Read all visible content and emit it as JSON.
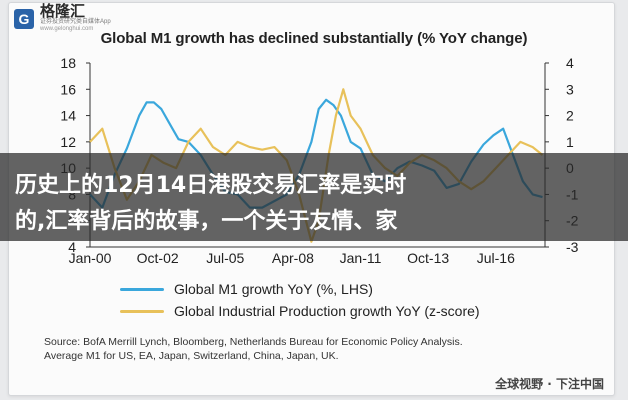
{
  "brand": {
    "name": "格隆汇",
    "subtitle": "证券投资研究类自媒体App",
    "url": "www.gelonghui.com"
  },
  "banner": {
    "line1": "历史上的12月14日港股交易汇率是实时",
    "line2": "的,汇率背后的故事，一个关于友情、家"
  },
  "watermark": "全球视野 · 下注中国",
  "source": {
    "line1": "Source: BofA Merrill Lynch, Bloomberg, Netherlands Bureau for Economic Policy Analysis.",
    "line2": "Average M1 for US, EA, Japan, Switzerland, China, Japan, UK."
  },
  "colors": {
    "m1": "#3aa7dc",
    "ip": "#e8c15a"
  },
  "chart_data": {
    "type": "line",
    "title": "Global M1 growth has declined substantially (% YoY change)",
    "x_ticks": [
      "Jan-00",
      "Oct-02",
      "Jul-05",
      "Apr-08",
      "Jan-11",
      "Oct-13",
      "Jul-16"
    ],
    "y_left": {
      "ticks": [
        "18",
        "16",
        "14",
        "12",
        "10",
        "8",
        "6",
        "4"
      ],
      "range": [
        4,
        18
      ]
    },
    "y_right": {
      "ticks": [
        "4",
        "3",
        "2",
        "1",
        "0",
        "-1",
        "-2",
        "-3"
      ],
      "range": [
        -3,
        4
      ]
    },
    "x_range": [
      2000.0,
      2018.5
    ],
    "series": [
      {
        "name": "Global M1 growth YoY (%, LHS)",
        "axis": "left",
        "points": [
          [
            2000.0,
            8.0
          ],
          [
            2000.5,
            7.0
          ],
          [
            2001.0,
            9.5
          ],
          [
            2001.5,
            11.5
          ],
          [
            2002.0,
            14.0
          ],
          [
            2002.3,
            15.0
          ],
          [
            2002.6,
            15.0
          ],
          [
            2002.9,
            14.5
          ],
          [
            2003.2,
            13.5
          ],
          [
            2003.6,
            12.2
          ],
          [
            2004.0,
            12.0
          ],
          [
            2004.5,
            11.0
          ],
          [
            2005.0,
            9.5
          ],
          [
            2005.5,
            8.2
          ],
          [
            2006.0,
            8.0
          ],
          [
            2006.5,
            7.0
          ],
          [
            2007.0,
            7.0
          ],
          [
            2007.5,
            7.5
          ],
          [
            2008.0,
            8.0
          ],
          [
            2008.5,
            9.5
          ],
          [
            2009.0,
            12.0
          ],
          [
            2009.3,
            14.5
          ],
          [
            2009.6,
            15.2
          ],
          [
            2009.9,
            14.8
          ],
          [
            2010.2,
            14.0
          ],
          [
            2010.6,
            12.0
          ],
          [
            2011.0,
            11.5
          ],
          [
            2011.5,
            9.5
          ],
          [
            2012.0,
            9.0
          ],
          [
            2012.5,
            10.0
          ],
          [
            2013.0,
            10.5
          ],
          [
            2013.5,
            10.2
          ],
          [
            2014.0,
            9.8
          ],
          [
            2014.5,
            8.5
          ],
          [
            2015.0,
            8.8
          ],
          [
            2015.5,
            10.5
          ],
          [
            2016.0,
            11.8
          ],
          [
            2016.4,
            12.5
          ],
          [
            2016.8,
            13.0
          ],
          [
            2017.2,
            11.0
          ],
          [
            2017.6,
            9.0
          ],
          [
            2018.0,
            8.0
          ],
          [
            2018.4,
            7.8
          ]
        ]
      },
      {
        "name": "Global Industrial Production growth YoY (z-score)",
        "axis": "right",
        "points": [
          [
            2000.0,
            1.0
          ],
          [
            2000.5,
            1.5
          ],
          [
            2001.0,
            0.0
          ],
          [
            2001.5,
            -1.2
          ],
          [
            2002.0,
            -0.5
          ],
          [
            2002.5,
            0.5
          ],
          [
            2003.0,
            0.2
          ],
          [
            2003.5,
            0.0
          ],
          [
            2004.0,
            1.0
          ],
          [
            2004.5,
            1.5
          ],
          [
            2005.0,
            0.8
          ],
          [
            2005.5,
            0.5
          ],
          [
            2006.0,
            1.0
          ],
          [
            2006.5,
            0.8
          ],
          [
            2007.0,
            0.7
          ],
          [
            2007.5,
            0.8
          ],
          [
            2008.0,
            0.3
          ],
          [
            2008.5,
            -1.0
          ],
          [
            2009.0,
            -2.8
          ],
          [
            2009.3,
            -2.0
          ],
          [
            2009.7,
            0.5
          ],
          [
            2010.0,
            2.0
          ],
          [
            2010.3,
            3.0
          ],
          [
            2010.6,
            2.0
          ],
          [
            2011.0,
            1.5
          ],
          [
            2011.5,
            0.5
          ],
          [
            2012.0,
            0.0
          ],
          [
            2012.5,
            -0.3
          ],
          [
            2013.0,
            0.2
          ],
          [
            2013.5,
            0.5
          ],
          [
            2014.0,
            0.3
          ],
          [
            2014.5,
            0.0
          ],
          [
            2015.0,
            -0.5
          ],
          [
            2015.5,
            -0.8
          ],
          [
            2016.0,
            -0.5
          ],
          [
            2016.5,
            0.0
          ],
          [
            2017.0,
            0.5
          ],
          [
            2017.5,
            1.0
          ],
          [
            2018.0,
            0.8
          ],
          [
            2018.4,
            0.5
          ]
        ]
      }
    ],
    "grid": false,
    "legend_position": "bottom"
  }
}
